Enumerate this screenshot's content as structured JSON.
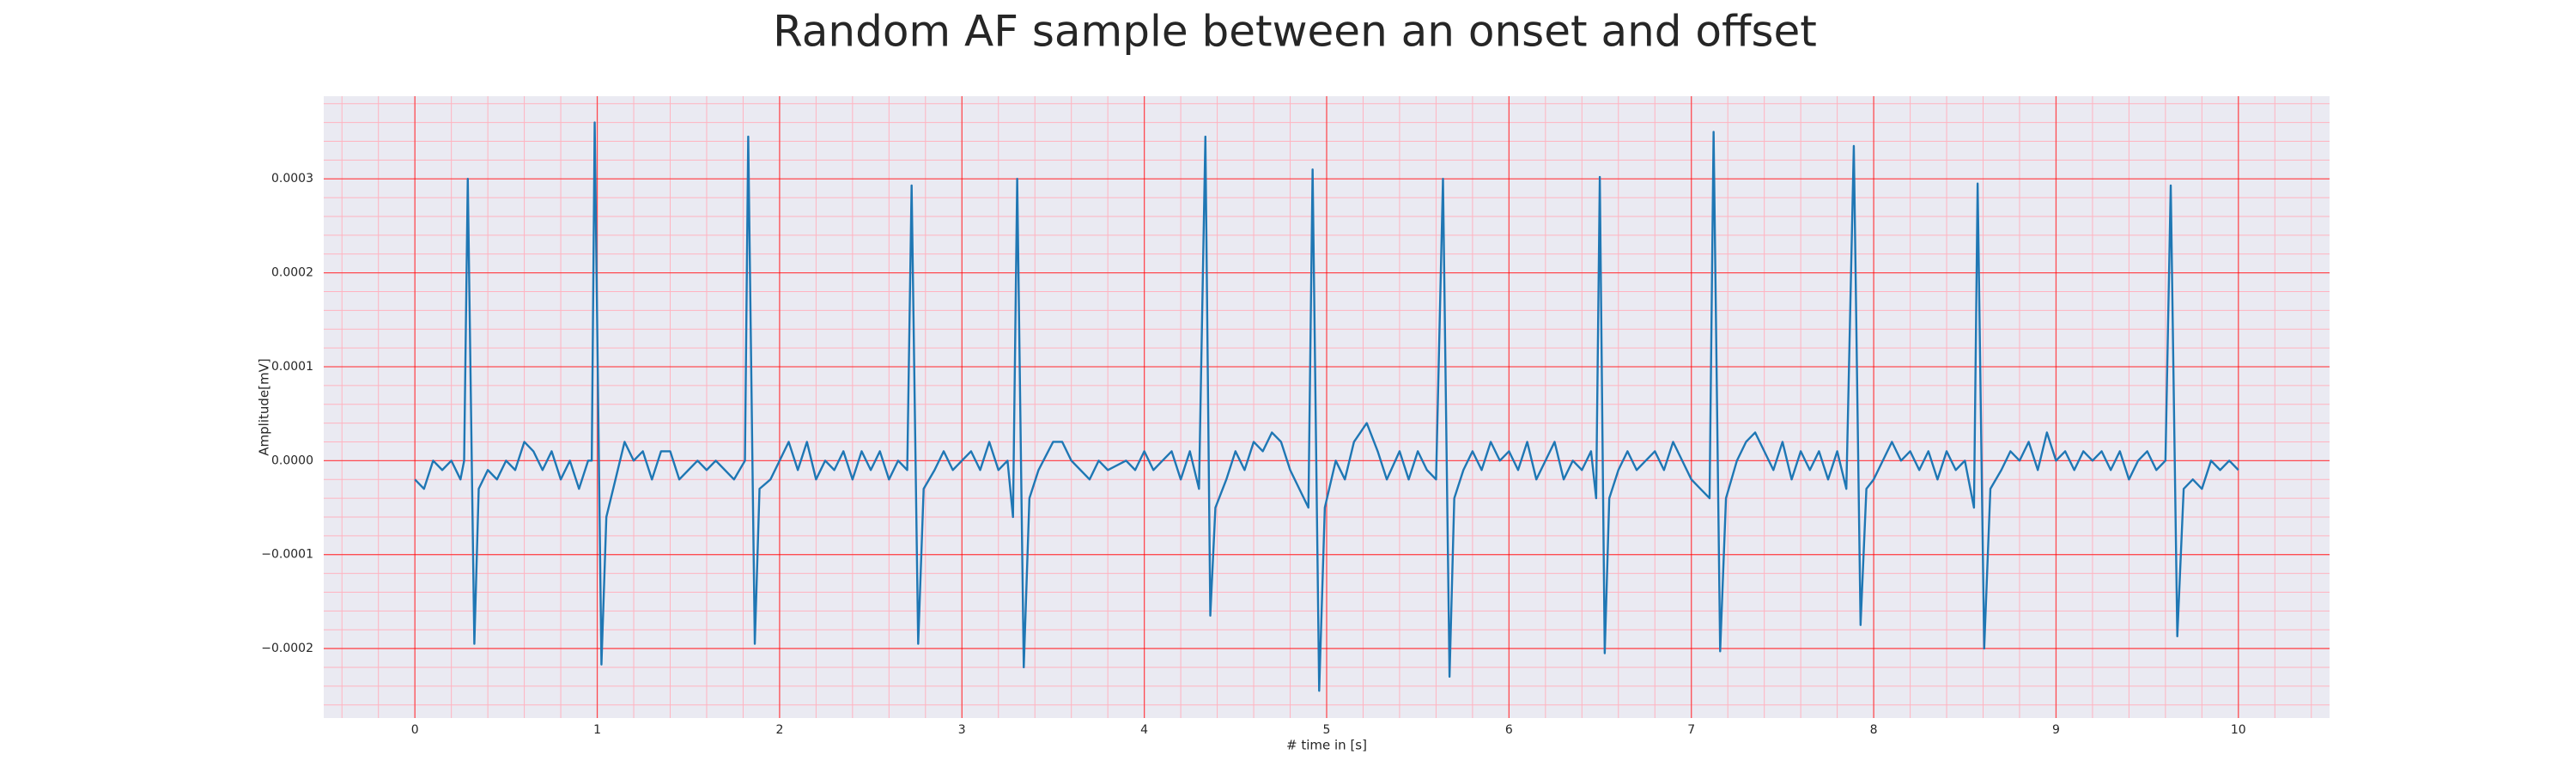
{
  "chart_data": {
    "type": "line",
    "title": "Random AF sample between an onset and offset",
    "x_label": "# time in [s]",
    "y_label": "Amplitude[mV]",
    "color": "#1f77b4",
    "grid": true,
    "grid_color": "#ff0000",
    "minor_grid_color": "#ffb3c0",
    "background": "#eaeaf2",
    "xlim": [
      -0.5,
      10.5
    ],
    "ylim": [
      -0.000274,
      0.000388
    ],
    "xticks": [
      0,
      1,
      2,
      3,
      4,
      5,
      6,
      7,
      8,
      9,
      10
    ],
    "yticks": [
      {
        "value": -0.0002,
        "label": "−0.0002"
      },
      {
        "value": -0.0001,
        "label": "−0.0001"
      },
      {
        "value": 0,
        "label": "0.0000"
      },
      0.0001,
      0.0002,
      0.0003
    ],
    "x": [
      0,
      0.05,
      0.1,
      0.15,
      0.2,
      0.25,
      0.27,
      0.29,
      0.326,
      0.35,
      0.4,
      0.45,
      0.5,
      0.55,
      0.6,
      0.65,
      0.7,
      0.75,
      0.8,
      0.85,
      0.9,
      0.95,
      0.97,
      0.986,
      1.023,
      1.05,
      1.1,
      1.15,
      1.2,
      1.25,
      1.3,
      1.35,
      1.4,
      1.45,
      1.5,
      1.55,
      1.6,
      1.65,
      1.7,
      1.75,
      1.81,
      1.828,
      1.864,
      1.89,
      1.95,
      2.0,
      2.05,
      2.1,
      2.15,
      2.2,
      2.25,
      2.3,
      2.35,
      2.4,
      2.45,
      2.5,
      2.55,
      2.6,
      2.65,
      2.7,
      2.724,
      2.76,
      2.79,
      2.85,
      2.9,
      2.95,
      3.0,
      3.05,
      3.1,
      3.15,
      3.2,
      3.25,
      3.28,
      3.303,
      3.339,
      3.37,
      3.42,
      3.5,
      3.55,
      3.6,
      3.65,
      3.7,
      3.75,
      3.8,
      3.9,
      3.95,
      4.0,
      4.05,
      4.1,
      4.15,
      4.2,
      4.25,
      4.3,
      4.335,
      4.362,
      4.39,
      4.45,
      4.5,
      4.55,
      4.6,
      4.65,
      4.7,
      4.75,
      4.8,
      4.85,
      4.9,
      4.923,
      4.959,
      4.99,
      5.05,
      5.1,
      5.15,
      5.22,
      5.28,
      5.33,
      5.4,
      5.45,
      5.5,
      5.55,
      5.6,
      5.638,
      5.674,
      5.7,
      5.75,
      5.8,
      5.85,
      5.9,
      5.95,
      6.0,
      6.05,
      6.1,
      6.15,
      6.2,
      6.25,
      6.3,
      6.35,
      6.4,
      6.45,
      6.478,
      6.498,
      6.525,
      6.55,
      6.6,
      6.65,
      6.7,
      6.75,
      6.8,
      6.85,
      6.9,
      6.95,
      7.0,
      7.05,
      7.1,
      7.122,
      7.158,
      7.19,
      7.25,
      7.3,
      7.35,
      7.4,
      7.45,
      7.5,
      7.55,
      7.6,
      7.65,
      7.7,
      7.75,
      7.8,
      7.85,
      7.891,
      7.928,
      7.96,
      8.0,
      8.05,
      8.1,
      8.15,
      8.2,
      8.25,
      8.3,
      8.35,
      8.4,
      8.45,
      8.5,
      8.55,
      8.57,
      8.606,
      8.64,
      8.7,
      8.75,
      8.8,
      8.85,
      8.9,
      8.95,
      9.0,
      9.05,
      9.1,
      9.15,
      9.2,
      9.25,
      9.3,
      9.35,
      9.4,
      9.45,
      9.5,
      9.55,
      9.6,
      9.629,
      9.665,
      9.7,
      9.75,
      9.8,
      9.85,
      9.9,
      9.95,
      10.0
    ],
    "values": [
      -2e-05,
      -3e-05,
      0,
      -1e-05,
      0,
      -2e-05,
      0,
      0.0003,
      -0.000195,
      -3e-05,
      -1e-05,
      -2e-05,
      0,
      -1e-05,
      2e-05,
      1e-05,
      -1e-05,
      1e-05,
      -2e-05,
      0,
      -3e-05,
      0,
      0,
      0.00036,
      -0.000217,
      -6e-05,
      -2e-05,
      2e-05,
      0,
      1e-05,
      -2e-05,
      1e-05,
      1e-05,
      -2e-05,
      -1e-05,
      0,
      -1e-05,
      0,
      -1e-05,
      -2e-05,
      0,
      0.000345,
      -0.000195,
      -3e-05,
      -2e-05,
      0,
      2e-05,
      -1e-05,
      2e-05,
      -2e-05,
      0,
      -1e-05,
      1e-05,
      -2e-05,
      1e-05,
      -1e-05,
      1e-05,
      -2e-05,
      0,
      -1e-05,
      0.000293,
      -0.000195,
      -3e-05,
      -1e-05,
      1e-05,
      -1e-05,
      0,
      1e-05,
      -1e-05,
      2e-05,
      -1e-05,
      0,
      -6e-05,
      0.0003,
      -0.00022,
      -4e-05,
      -1e-05,
      2e-05,
      2e-05,
      0,
      -1e-05,
      -2e-05,
      0,
      -1e-05,
      0,
      -1e-05,
      1e-05,
      -1e-05,
      0,
      1e-05,
      -2e-05,
      1e-05,
      -3e-05,
      0.000345,
      -0.000165,
      -5e-05,
      -2e-05,
      1e-05,
      -1e-05,
      2e-05,
      1e-05,
      3e-05,
      2e-05,
      -1e-05,
      -3e-05,
      -5e-05,
      0.00031,
      -0.000245,
      -5e-05,
      0,
      -2e-05,
      2e-05,
      4e-05,
      1e-05,
      -2e-05,
      1e-05,
      -2e-05,
      1e-05,
      -1e-05,
      -2e-05,
      0.0003,
      -0.00023,
      -4e-05,
      -1e-05,
      1e-05,
      -1e-05,
      2e-05,
      0,
      1e-05,
      -1e-05,
      2e-05,
      -2e-05,
      0,
      2e-05,
      -2e-05,
      0,
      -1e-05,
      1e-05,
      -4e-05,
      0.000302,
      -0.000205,
      -4e-05,
      -1e-05,
      1e-05,
      -1e-05,
      0,
      1e-05,
      -1e-05,
      2e-05,
      0,
      -2e-05,
      -3e-05,
      -4e-05,
      0.00035,
      -0.000203,
      -4e-05,
      0,
      2e-05,
      3e-05,
      1e-05,
      -1e-05,
      2e-05,
      -2e-05,
      1e-05,
      -1e-05,
      1e-05,
      -2e-05,
      1e-05,
      -3e-05,
      0.000335,
      -0.000175,
      -3e-05,
      -2e-05,
      0,
      2e-05,
      0,
      1e-05,
      -1e-05,
      1e-05,
      -2e-05,
      1e-05,
      -1e-05,
      0,
      -5e-05,
      0.000295,
      -0.0002,
      -3e-05,
      -1e-05,
      1e-05,
      0,
      2e-05,
      -1e-05,
      3e-05,
      0,
      1e-05,
      -1e-05,
      1e-05,
      0,
      1e-05,
      -1e-05,
      1e-05,
      -2e-05,
      0,
      1e-05,
      -1e-05,
      0,
      0.000293,
      -0.000187,
      -3e-05,
      -2e-05,
      -3e-05,
      0,
      -1e-05,
      0,
      -1e-05
    ]
  }
}
